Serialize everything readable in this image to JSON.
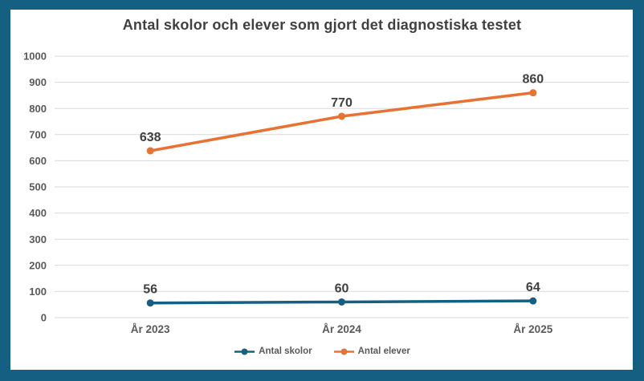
{
  "frame": {
    "border_color": "#156082",
    "panel_background": "#FFFFFF"
  },
  "styles": {
    "gridline_color": "#D9D9D9",
    "axis_label_color": "#595959",
    "data_label_color": "#404040",
    "title_color": "#404040"
  },
  "chart_data": {
    "type": "line",
    "title": "Antal skolor och elever som gjort det diagnostiska testet",
    "categories": [
      "År 2023",
      "År 2024",
      "År 2025"
    ],
    "series": [
      {
        "name": "Antal skolor",
        "color": "#156082",
        "values": [
          56,
          60,
          64
        ]
      },
      {
        "name": "Antal elever",
        "color": "#E97132",
        "values": [
          638,
          770,
          860
        ]
      }
    ],
    "y_axis": {
      "min": 0,
      "max": 1000,
      "step": 100
    },
    "xlabel": "",
    "ylabel": "",
    "grid": true,
    "data_labels": true,
    "legend_position": "bottom"
  }
}
